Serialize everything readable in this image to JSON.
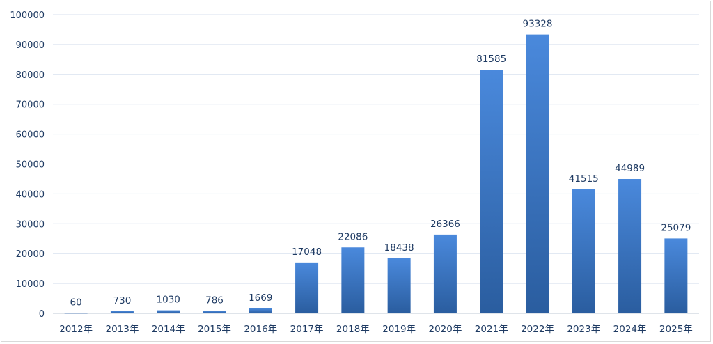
{
  "chart_data": {
    "type": "bar",
    "title": "",
    "xlabel": "",
    "ylabel": "",
    "categories": [
      "2012年",
      "2013年",
      "2014年",
      "2015年",
      "2016年",
      "2017年",
      "2018年",
      "2019年",
      "2020年",
      "2021年",
      "2022年",
      "2023年",
      "2024年",
      "2025年"
    ],
    "values": [
      60,
      730,
      1030,
      786,
      1669,
      17048,
      22086,
      18438,
      26366,
      81585,
      93328,
      41515,
      44989,
      25079
    ],
    "ylim": [
      0,
      100000
    ],
    "yticks": [
      0,
      10000,
      20000,
      30000,
      40000,
      50000,
      60000,
      70000,
      80000,
      90000,
      100000
    ],
    "grid": true,
    "data_labels": true,
    "colors": {
      "bar_top": "#4a89dc",
      "bar_bottom": "#2a5d9f",
      "grid": "#d9e2ef",
      "text": "#1f3b63"
    }
  }
}
